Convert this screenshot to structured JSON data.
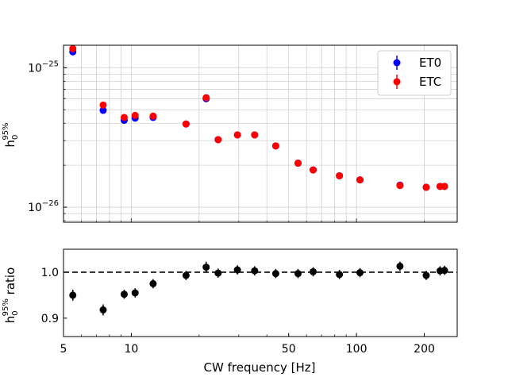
{
  "chart_data": [
    {
      "type": "scatter",
      "panel": "top",
      "ylabel_main": "h",
      "ylabel_sub": "0",
      "ylabel_sup": "95%",
      "xscale": "log",
      "yscale": "log",
      "xlim": [
        5,
        280
      ],
      "ylim": [
        7.8e-27,
        1.45e-25
      ],
      "yticks": [
        {
          "value": 1e-25,
          "base": "10",
          "exp": "−25"
        },
        {
          "value": 1e-26,
          "base": "10",
          "exp": "−26"
        }
      ],
      "grid": "both",
      "legend": "top-right",
      "series": [
        {
          "name": "ET0",
          "color": "#0000ff",
          "x": [
            5.5,
            7.5,
            9.3,
            10.4,
            12.5,
            17.5,
            21.5,
            24.3,
            29.6,
            35.3,
            43.8,
            55.0,
            64.2,
            84.0,
            103.6,
            156.0,
            204.0,
            235.0,
            246.0
          ],
          "y": [
            1.3e-25,
            4.95e-26,
            4.2e-26,
            4.35e-26,
            4.4e-26,
            3.95e-26,
            6e-26,
            3.05e-26,
            3.3e-26,
            3.3e-26,
            2.75e-26,
            2.07e-26,
            1.85e-26,
            1.68e-26,
            1.57e-26,
            1.44e-26,
            1.39e-26,
            1.41e-26,
            1.41e-26
          ]
        },
        {
          "name": "ETC",
          "color": "#ff0000",
          "x": [
            5.5,
            7.5,
            9.3,
            10.4,
            12.5,
            17.5,
            21.5,
            24.3,
            29.6,
            35.3,
            43.8,
            55.0,
            64.2,
            84.0,
            103.6,
            156.0,
            204.0,
            235.0,
            246.0
          ],
          "y": [
            1.37e-25,
            5.4e-26,
            4.4e-26,
            4.55e-26,
            4.5e-26,
            3.95e-26,
            6.1e-26,
            3.05e-26,
            3.3e-26,
            3.3e-26,
            2.75e-26,
            2.07e-26,
            1.85e-26,
            1.68e-26,
            1.57e-26,
            1.43e-26,
            1.39e-26,
            1.41e-26,
            1.41e-26
          ]
        }
      ]
    },
    {
      "type": "scatter",
      "panel": "bottom",
      "xlabel": "CW frequency [Hz]",
      "ylabel_main": "h",
      "ylabel_sub": "0",
      "ylabel_sup": "95%",
      "ylabel_suffix": " ratio",
      "xscale": "log",
      "xlim": [
        5,
        280
      ],
      "ylim": [
        0.86,
        1.05
      ],
      "xticks": [
        {
          "value": 5,
          "label": "5"
        },
        {
          "value": 10,
          "label": "10"
        },
        {
          "value": 50,
          "label": "50"
        },
        {
          "value": 100,
          "label": "100"
        },
        {
          "value": 200,
          "label": "200"
        }
      ],
      "yticks": [
        {
          "value": 0.9,
          "label": "0.9"
        },
        {
          "value": 1.0,
          "label": "1.0"
        }
      ],
      "reference_line": 1.0,
      "series": [
        {
          "color": "#000000",
          "x": [
            5.5,
            7.5,
            9.3,
            10.4,
            12.5,
            17.5,
            21.5,
            24.3,
            29.6,
            35.3,
            43.8,
            55.0,
            64.2,
            84.0,
            103.6,
            156.0,
            204.0,
            235.0,
            246.0
          ],
          "y": [
            0.95,
            0.918,
            0.952,
            0.955,
            0.975,
            0.993,
            1.011,
            0.998,
            1.005,
            1.003,
            0.997,
            0.997,
            1.001,
            0.995,
            0.999,
            1.013,
            0.993,
            1.003,
            1.004
          ],
          "err": [
            0.012,
            0.012,
            0.01,
            0.01,
            0.01,
            0.01,
            0.012,
            0.01,
            0.01,
            0.01,
            0.01,
            0.01,
            0.01,
            0.01,
            0.01,
            0.01,
            0.01,
            0.01,
            0.01
          ]
        }
      ]
    }
  ]
}
